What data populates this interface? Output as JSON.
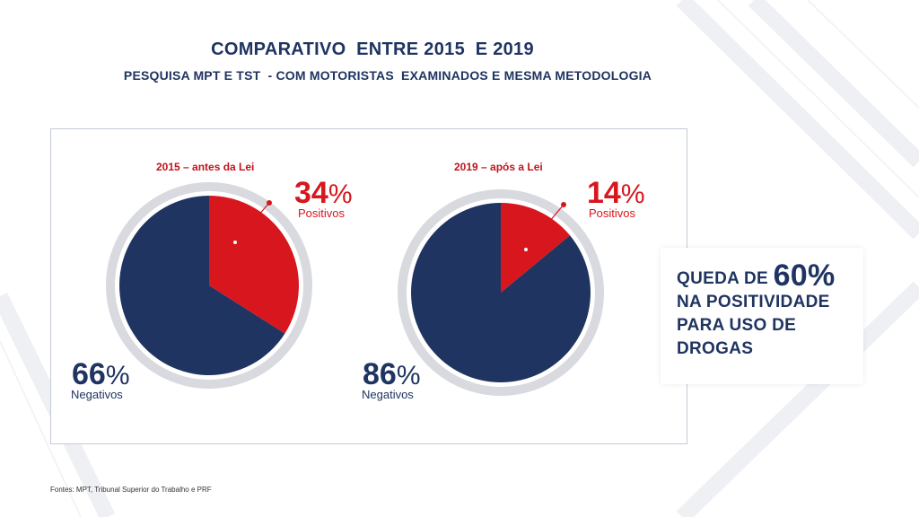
{
  "header": {
    "title": "COMPARATIVO  ENTRE 2015  E 2019",
    "subtitle": "PESQUISA MPT E TST  - COM MOTORISTAS  EXAMINADOS E MESMA METODOLOGIA"
  },
  "colors": {
    "positive": "#d7161d",
    "negative": "#1f3461",
    "ring": "#d8dadf"
  },
  "chart_data": [
    {
      "type": "pie",
      "title": "2015 – antes da Lei",
      "categories": [
        "Positivos",
        "Negativos"
      ],
      "values": [
        34,
        66
      ],
      "labels": {
        "positive_value": "34",
        "positive_label": "Positivos",
        "negative_value": "66",
        "negative_label": "Negativos",
        "percent_symbol": "%"
      }
    },
    {
      "type": "pie",
      "title": "2019 – após a Lei",
      "categories": [
        "Positivos",
        "Negativos"
      ],
      "values": [
        14,
        86
      ],
      "labels": {
        "positive_value": "14",
        "positive_label": "Positivos",
        "negative_value": "86",
        "negative_label": "Negativos",
        "percent_symbol": "%"
      }
    }
  ],
  "callout": {
    "line1_prefix": "QUEDA DE ",
    "line1_value": "60%",
    "line2": "NA POSITIVIDADE",
    "line3": "PARA USO DE",
    "line4": "DROGAS"
  },
  "footer": {
    "source": "Fontes: MPT, Tribunal Superior do Trabalho e PRF"
  }
}
